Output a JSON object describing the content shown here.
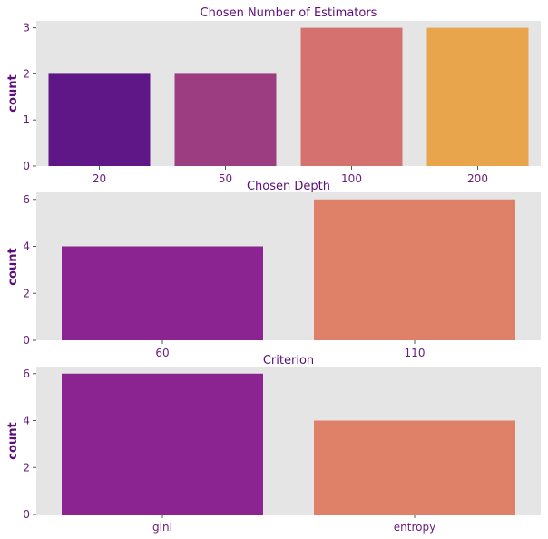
{
  "chart_data": [
    {
      "type": "bar",
      "title": "Chosen Number of Estimators",
      "xlabel": "",
      "ylabel": "count",
      "categories": [
        "20",
        "50",
        "100",
        "200"
      ],
      "values": [
        2,
        2,
        3,
        3
      ],
      "colors": [
        "#5f1788",
        "#9b3d80",
        "#d5716f",
        "#e8a54b"
      ],
      "ylim": [
        0,
        3.15
      ],
      "yticks": [
        0,
        1,
        2,
        3
      ]
    },
    {
      "type": "bar",
      "title": "Chosen Depth",
      "xlabel": "",
      "ylabel": "count",
      "categories": [
        "60",
        "110"
      ],
      "values": [
        4,
        6
      ],
      "colors": [
        "#8b2490",
        "#de8168"
      ],
      "ylim": [
        0,
        6.3
      ],
      "yticks": [
        0,
        2,
        4,
        6
      ]
    },
    {
      "type": "bar",
      "title": "Criterion",
      "xlabel": "",
      "ylabel": "count",
      "categories": [
        "gini",
        "entropy"
      ],
      "values": [
        6,
        4
      ],
      "colors": [
        "#8b2490",
        "#de8168"
      ],
      "ylim": [
        0,
        6.3
      ],
      "yticks": [
        0,
        2,
        4,
        6
      ]
    }
  ]
}
